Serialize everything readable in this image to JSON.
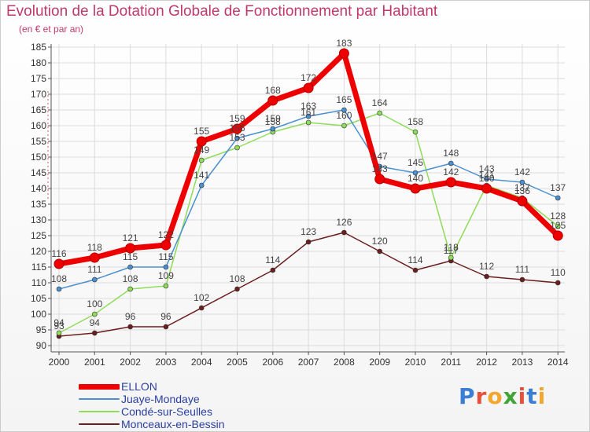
{
  "header": {
    "title": "Evolution de la Dotation Globale de Fonctionnement par Habitant",
    "subtitle": "(en € et par an)"
  },
  "brand": {
    "text": "Proxiti",
    "colors": [
      "#3a7fd5",
      "#e8503a",
      "#f2a72e",
      "#3fa535",
      "#e8503a",
      "#3a7fd5",
      "#f2a72e"
    ]
  },
  "chart_data": {
    "type": "line",
    "title": "Evolution de la Dotation Globale de Fonctionnement par Habitant",
    "subtitle": "(en € et par an)",
    "xlabel": "",
    "ylabel": "",
    "ylim": [
      90,
      185
    ],
    "yticks": [
      90,
      95,
      100,
      105,
      110,
      115,
      120,
      125,
      130,
      135,
      140,
      145,
      150,
      155,
      160,
      165,
      170,
      175,
      180,
      185
    ],
    "x": [
      "2000",
      "2001",
      "2002",
      "2003",
      "2004",
      "2005",
      "2006",
      "2007",
      "2008",
      "2009",
      "2010",
      "2011",
      "2012",
      "2013",
      "2014"
    ],
    "grid": true,
    "legend_position": "bottom-left",
    "series": [
      {
        "name": "Monceaux-en-Bessin",
        "color": "#6b1e1e",
        "width": 1.5,
        "values": [
          93,
          94,
          96,
          96,
          102,
          108,
          114,
          123,
          126,
          120,
          114,
          117,
          112,
          111,
          110
        ],
        "labels": [
          "93",
          "94",
          "96",
          "96",
          "102",
          "108",
          "114",
          "123",
          "126",
          "120",
          "114",
          "117",
          "112",
          "111",
          "110"
        ]
      },
      {
        "name": "Condé-sur-Seulles",
        "color": "#8fdc5a",
        "width": 1.5,
        "values": [
          94,
          100,
          108,
          109,
          149,
          153,
          158,
          161,
          160,
          164,
          158,
          118,
          141,
          137,
          128
        ],
        "labels": [
          "94",
          "100",
          "108",
          "109",
          "149",
          "153",
          "158",
          "161",
          "160",
          "164",
          "158",
          "118",
          "141",
          "137",
          "128"
        ]
      },
      {
        "name": "Juaye-Mondaye",
        "color": "#4a8fcf",
        "width": 1.5,
        "values": [
          108,
          111,
          115,
          115,
          141,
          156,
          159,
          163,
          165,
          147,
          145,
          148,
          143,
          142,
          137
        ],
        "labels": [
          "108",
          "111",
          "115",
          "115",
          "141",
          "156",
          "159",
          "163",
          "165",
          "147",
          "145",
          "148",
          "143",
          "142",
          "137"
        ]
      },
      {
        "name": "ELLON",
        "color": "#ee0000",
        "width": 7,
        "values": [
          116,
          118,
          121,
          122,
          155,
          159,
          168,
          172,
          183,
          143,
          140,
          142,
          140,
          136,
          125
        ],
        "labels": [
          "116",
          "118",
          "121",
          "122",
          "155",
          "159",
          "168",
          "172",
          "183",
          "143",
          "140",
          "142",
          "140",
          "136",
          "125"
        ]
      }
    ]
  },
  "legend": {
    "items": [
      {
        "label": "ELLON",
        "color": "#ee0000",
        "thick": true
      },
      {
        "label": "Juaye-Mondaye",
        "color": "#4a8fcf",
        "thick": false
      },
      {
        "label": "Condé-sur-Seulles",
        "color": "#8fdc5a",
        "thick": false
      },
      {
        "label": "Monceaux-en-Bessin",
        "color": "#6b1e1e",
        "thick": false
      }
    ]
  }
}
